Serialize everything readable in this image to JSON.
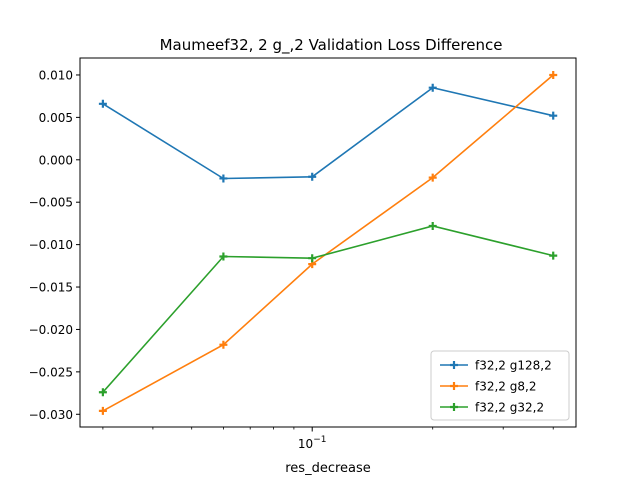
{
  "chart_data": {
    "type": "line",
    "title": "Maumeef32, 2 g_,2 Validation Loss Difference",
    "xlabel": "res_decrease",
    "ylabel": "",
    "xscale": "log",
    "x": [
      0.03,
      0.06,
      0.1,
      0.2,
      0.4
    ],
    "xticks": [
      {
        "value": 0.1,
        "label": "10^{-1}"
      }
    ],
    "ylim": [
      -0.0315,
      0.012
    ],
    "yticks": [
      0.01,
      0.005,
      0.0,
      -0.005,
      -0.01,
      -0.015,
      -0.02,
      -0.025,
      -0.03
    ],
    "ytick_labels": [
      "0.010",
      "0.005",
      "0.000",
      "−0.005",
      "−0.010",
      "−0.015",
      "−0.020",
      "−0.025",
      "−0.030"
    ],
    "grid": false,
    "legend_position": "lower-right",
    "series": [
      {
        "name": "f32,2 g128,2",
        "color": "#1f77b4",
        "values": [
          0.0066,
          -0.0022,
          -0.002,
          0.0085,
          0.0052
        ]
      },
      {
        "name": "f32,2 g8,2",
        "color": "#ff7f0e",
        "values": [
          -0.0296,
          -0.0218,
          -0.0123,
          -0.0021,
          0.01
        ]
      },
      {
        "name": "f32,2 g32,2",
        "color": "#2ca02c",
        "values": [
          -0.0274,
          -0.0114,
          -0.0116,
          -0.0078,
          -0.0113
        ]
      }
    ]
  }
}
